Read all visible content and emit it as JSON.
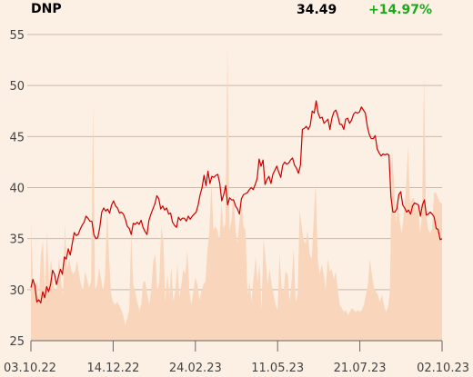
{
  "header": {
    "ticker": "DNP",
    "price": "34.49",
    "change": "+14.97%"
  },
  "colors": {
    "background": "#fcefe3",
    "line": "#cc0000",
    "volume": "#f9d5bb",
    "grid": "#c9b9ad",
    "change": "#1aaa1a"
  },
  "chart_data": {
    "type": "line",
    "ylim": [
      25,
      55
    ],
    "yticks": [
      "25",
      "30",
      "35",
      "40",
      "45",
      "50",
      "55"
    ],
    "xticks": [
      "03.10.22",
      "14.12.22",
      "24.02.23",
      "11.05.23",
      "21.07.23",
      "02.10.23"
    ],
    "grid": true,
    "series": [
      {
        "type": "line",
        "values": [
          30.2,
          31.0,
          30.4,
          28.8,
          29.0,
          28.7,
          29.8,
          29.2,
          30.3,
          29.8,
          30.5,
          31.9,
          31.5,
          30.5,
          31.3,
          32.0,
          31.5,
          33.2,
          33.0,
          34.0,
          33.4,
          34.5,
          35.6,
          35.3,
          35.4,
          35.9,
          36.3,
          36.6,
          37.2,
          37.0,
          36.7,
          36.7,
          35.4,
          35.0,
          35.1,
          36.1,
          37.6,
          38.0,
          37.7,
          37.9,
          37.5,
          38.3,
          38.7,
          38.2,
          38.0,
          37.5,
          37.6,
          37.4,
          36.9,
          36.2,
          36.0,
          35.4,
          36.5,
          36.4,
          36.6,
          36.4,
          36.8,
          36.1,
          35.7,
          35.4,
          36.8,
          37.4,
          37.9,
          38.4,
          39.2,
          38.9,
          37.9,
          38.2,
          37.8,
          38.0,
          37.4,
          37.5,
          36.6,
          36.3,
          36.1,
          37.1,
          36.8,
          37.0,
          37.0,
          36.7,
          37.2,
          36.9,
          37.2,
          37.4,
          37.6,
          38.3,
          39.3,
          40.0,
          41.2,
          40.2,
          41.6,
          40.4,
          41.1,
          41.0,
          41.2,
          41.3,
          40.4,
          38.7,
          39.3,
          40.2,
          38.3,
          39.0,
          38.8,
          38.8,
          38.2,
          37.9,
          37.4,
          38.9,
          39.3,
          39.4,
          39.5,
          39.8,
          40.0,
          39.8,
          40.3,
          40.9,
          42.8,
          42.1,
          42.7,
          40.3,
          40.8,
          41.1,
          40.4,
          41.3,
          41.7,
          42.1,
          41.5,
          41.0,
          42.2,
          42.5,
          42.3,
          42.4,
          42.7,
          42.9,
          42.2,
          41.9,
          41.4,
          42.2,
          45.7,
          45.8,
          46.0,
          45.7,
          46.1,
          47.5,
          47.3,
          48.5,
          47.3,
          46.8,
          46.9,
          46.3,
          46.5,
          46.7,
          45.7,
          46.8,
          47.4,
          47.6,
          47.0,
          46.2,
          46.2,
          45.7,
          46.7,
          46.8,
          46.3,
          46.6,
          47.2,
          47.4,
          47.3,
          47.4,
          47.9,
          47.6,
          47.3,
          46.0,
          45.2,
          44.8,
          44.8,
          45.1,
          43.8,
          43.4,
          43.1,
          43.3,
          43.2,
          43.3,
          43.2,
          39.1,
          37.6,
          37.6,
          37.9,
          39.3,
          39.6,
          38.3,
          38.0,
          37.6,
          37.8,
          37.4,
          38.2,
          38.5,
          38.4,
          38.3,
          37.2,
          38.3,
          38.8,
          37.3,
          37.4,
          37.6,
          37.4,
          37.1,
          36.0,
          35.9,
          34.9,
          35.0
        ]
      },
      {
        "type": "area",
        "values": [
          36.5,
          31.2,
          30.5,
          30.8,
          29.2,
          33.5,
          34.8,
          29.5,
          35.8,
          30.5,
          33.0,
          30.8,
          29.8,
          30.2,
          33.2,
          30.8,
          29.5,
          36.5,
          32.0,
          33.0,
          32.0,
          31.5,
          31.8,
          32.8,
          31.5,
          30.5,
          29.8,
          31.8,
          31.0,
          30.2,
          30.8,
          48.0,
          29.8,
          30.5,
          32.2,
          31.0,
          29.8,
          31.5,
          38.0,
          33.0,
          29.5,
          28.8,
          28.5,
          28.8,
          28.5,
          28.0,
          27.5,
          26.5,
          27.2,
          28.0,
          35.5,
          30.5,
          29.8,
          28.8,
          28.0,
          28.5,
          30.8,
          30.8,
          29.5,
          28.5,
          30.0,
          32.8,
          33.5,
          29.8,
          30.8,
          36.2,
          34.8,
          28.8,
          31.5,
          29.5,
          32.2,
          28.8,
          29.8,
          32.5,
          29.2,
          30.5,
          32.0,
          31.5,
          33.8,
          29.8,
          28.5,
          29.8,
          31.2,
          30.5,
          29.0,
          29.8,
          30.5,
          30.8,
          33.8,
          35.8,
          40.5,
          35.8,
          36.2,
          35.8,
          34.8,
          38.5,
          36.0,
          36.5,
          53.8,
          35.8,
          36.8,
          39.5,
          35.8,
          34.5,
          36.8,
          38.5,
          36.2,
          35.8,
          29.5,
          30.8,
          28.8,
          31.0,
          33.2,
          30.8,
          32.5,
          28.0,
          35.0,
          33.0,
          30.5,
          32.0,
          30.5,
          29.5,
          28.5,
          28.0,
          33.5,
          30.0,
          29.8,
          31.8,
          31.5,
          28.8,
          30.8,
          34.0,
          28.8,
          29.5,
          37.8,
          36.2,
          34.8,
          34.5,
          35.8,
          33.5,
          33.0,
          36.8,
          40.5,
          33.0,
          31.5,
          32.5,
          31.5,
          30.0,
          33.0,
          31.8,
          32.0,
          31.0,
          31.8,
          30.0,
          28.5,
          28.2,
          27.8,
          28.0,
          27.5,
          27.8,
          28.2,
          28.0,
          27.8,
          28.0,
          27.8,
          28.0,
          28.5,
          29.5,
          30.5,
          33.0,
          31.5,
          30.2,
          29.8,
          29.5,
          28.8,
          29.5,
          28.5,
          27.8,
          28.2,
          29.8,
          43.8,
          40.5,
          36.5,
          38.5,
          36.5,
          35.5,
          37.8,
          39.8,
          44.0,
          38.5,
          38.8,
          39.0,
          37.5,
          38.8,
          35.5,
          37.2,
          50.8,
          37.5,
          36.0,
          35.5,
          36.0,
          39.5,
          39.5,
          39.0,
          38.5,
          38.5
        ]
      }
    ]
  }
}
